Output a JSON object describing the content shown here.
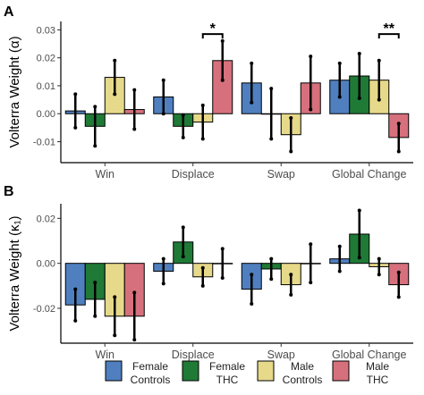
{
  "series_colors": [
    "#4f7fbf",
    "#1f7a36",
    "#e6d98a",
    "#d6707c"
  ],
  "legend": [
    {
      "line1": "Female",
      "line2": "Controls"
    },
    {
      "line1": "Female",
      "line2": "THC"
    },
    {
      "line1": "Male",
      "line2": "Controls"
    },
    {
      "line1": "Male",
      "line2": "THC"
    }
  ],
  "chart_data": [
    {
      "type": "bar",
      "panel": "A",
      "ylabel": "Volterra Weight (α)",
      "categories": [
        "Win",
        "Displace",
        "Swap",
        "Global Change"
      ],
      "ylim": [
        -0.0175,
        0.033
      ],
      "yticks": [
        -0.01,
        0.0,
        0.01,
        0.02,
        0.03
      ],
      "ytick_labels": [
        "-0.01",
        "0.00",
        "0.01",
        "0.02",
        "0.03"
      ],
      "series": [
        {
          "values": [
            0.001,
            0.006,
            0.011,
            0.012
          ],
          "err": [
            0.006,
            0.006,
            0.007,
            0.006
          ]
        },
        {
          "values": [
            -0.0045,
            -0.0045,
            0.0,
            0.0135
          ],
          "err": [
            0.007,
            0.004,
            0.009,
            0.008
          ]
        },
        {
          "values": [
            0.013,
            -0.003,
            -0.0075,
            0.012
          ],
          "err": [
            0.006,
            0.006,
            0.006,
            0.007
          ]
        },
        {
          "values": [
            0.0015,
            0.019,
            0.011,
            -0.0085
          ],
          "err": [
            0.007,
            0.007,
            0.0095,
            0.005
          ]
        }
      ],
      "significance": [
        {
          "category_index": 1,
          "from_series": 2,
          "to_series": 3,
          "label": "*",
          "y": 0.0285
        },
        {
          "category_index": 3,
          "from_series": 2,
          "to_series": 3,
          "label": "**",
          "y": 0.0285
        }
      ]
    },
    {
      "type": "bar",
      "panel": "B",
      "ylabel": "Volterra Weight (κ₁)",
      "categories": [
        "Win",
        "Displace",
        "Swap",
        "Global Change"
      ],
      "ylim": [
        -0.0355,
        0.0265
      ],
      "yticks": [
        -0.02,
        0.0,
        0.02
      ],
      "ytick_labels": [
        "-0.02",
        "0.00",
        "0.02"
      ],
      "series": [
        {
          "values": [
            -0.0185,
            -0.0035,
            -0.0115,
            0.002
          ],
          "err": [
            0.007,
            0.0055,
            0.0065,
            0.0055
          ]
        },
        {
          "values": [
            -0.016,
            0.0095,
            -0.0025,
            0.013
          ],
          "err": [
            0.0075,
            0.0065,
            0.0045,
            0.0105
          ]
        },
        {
          "values": [
            -0.0235,
            -0.006,
            -0.0095,
            -0.0015
          ],
          "err": [
            0.0085,
            0.004,
            0.0045,
            0.0035
          ]
        },
        {
          "values": [
            -0.0235,
            0.0,
            0.0,
            -0.0095
          ],
          "err": [
            0.0105,
            0.0065,
            0.0085,
            0.0055
          ]
        }
      ],
      "significance": []
    }
  ]
}
